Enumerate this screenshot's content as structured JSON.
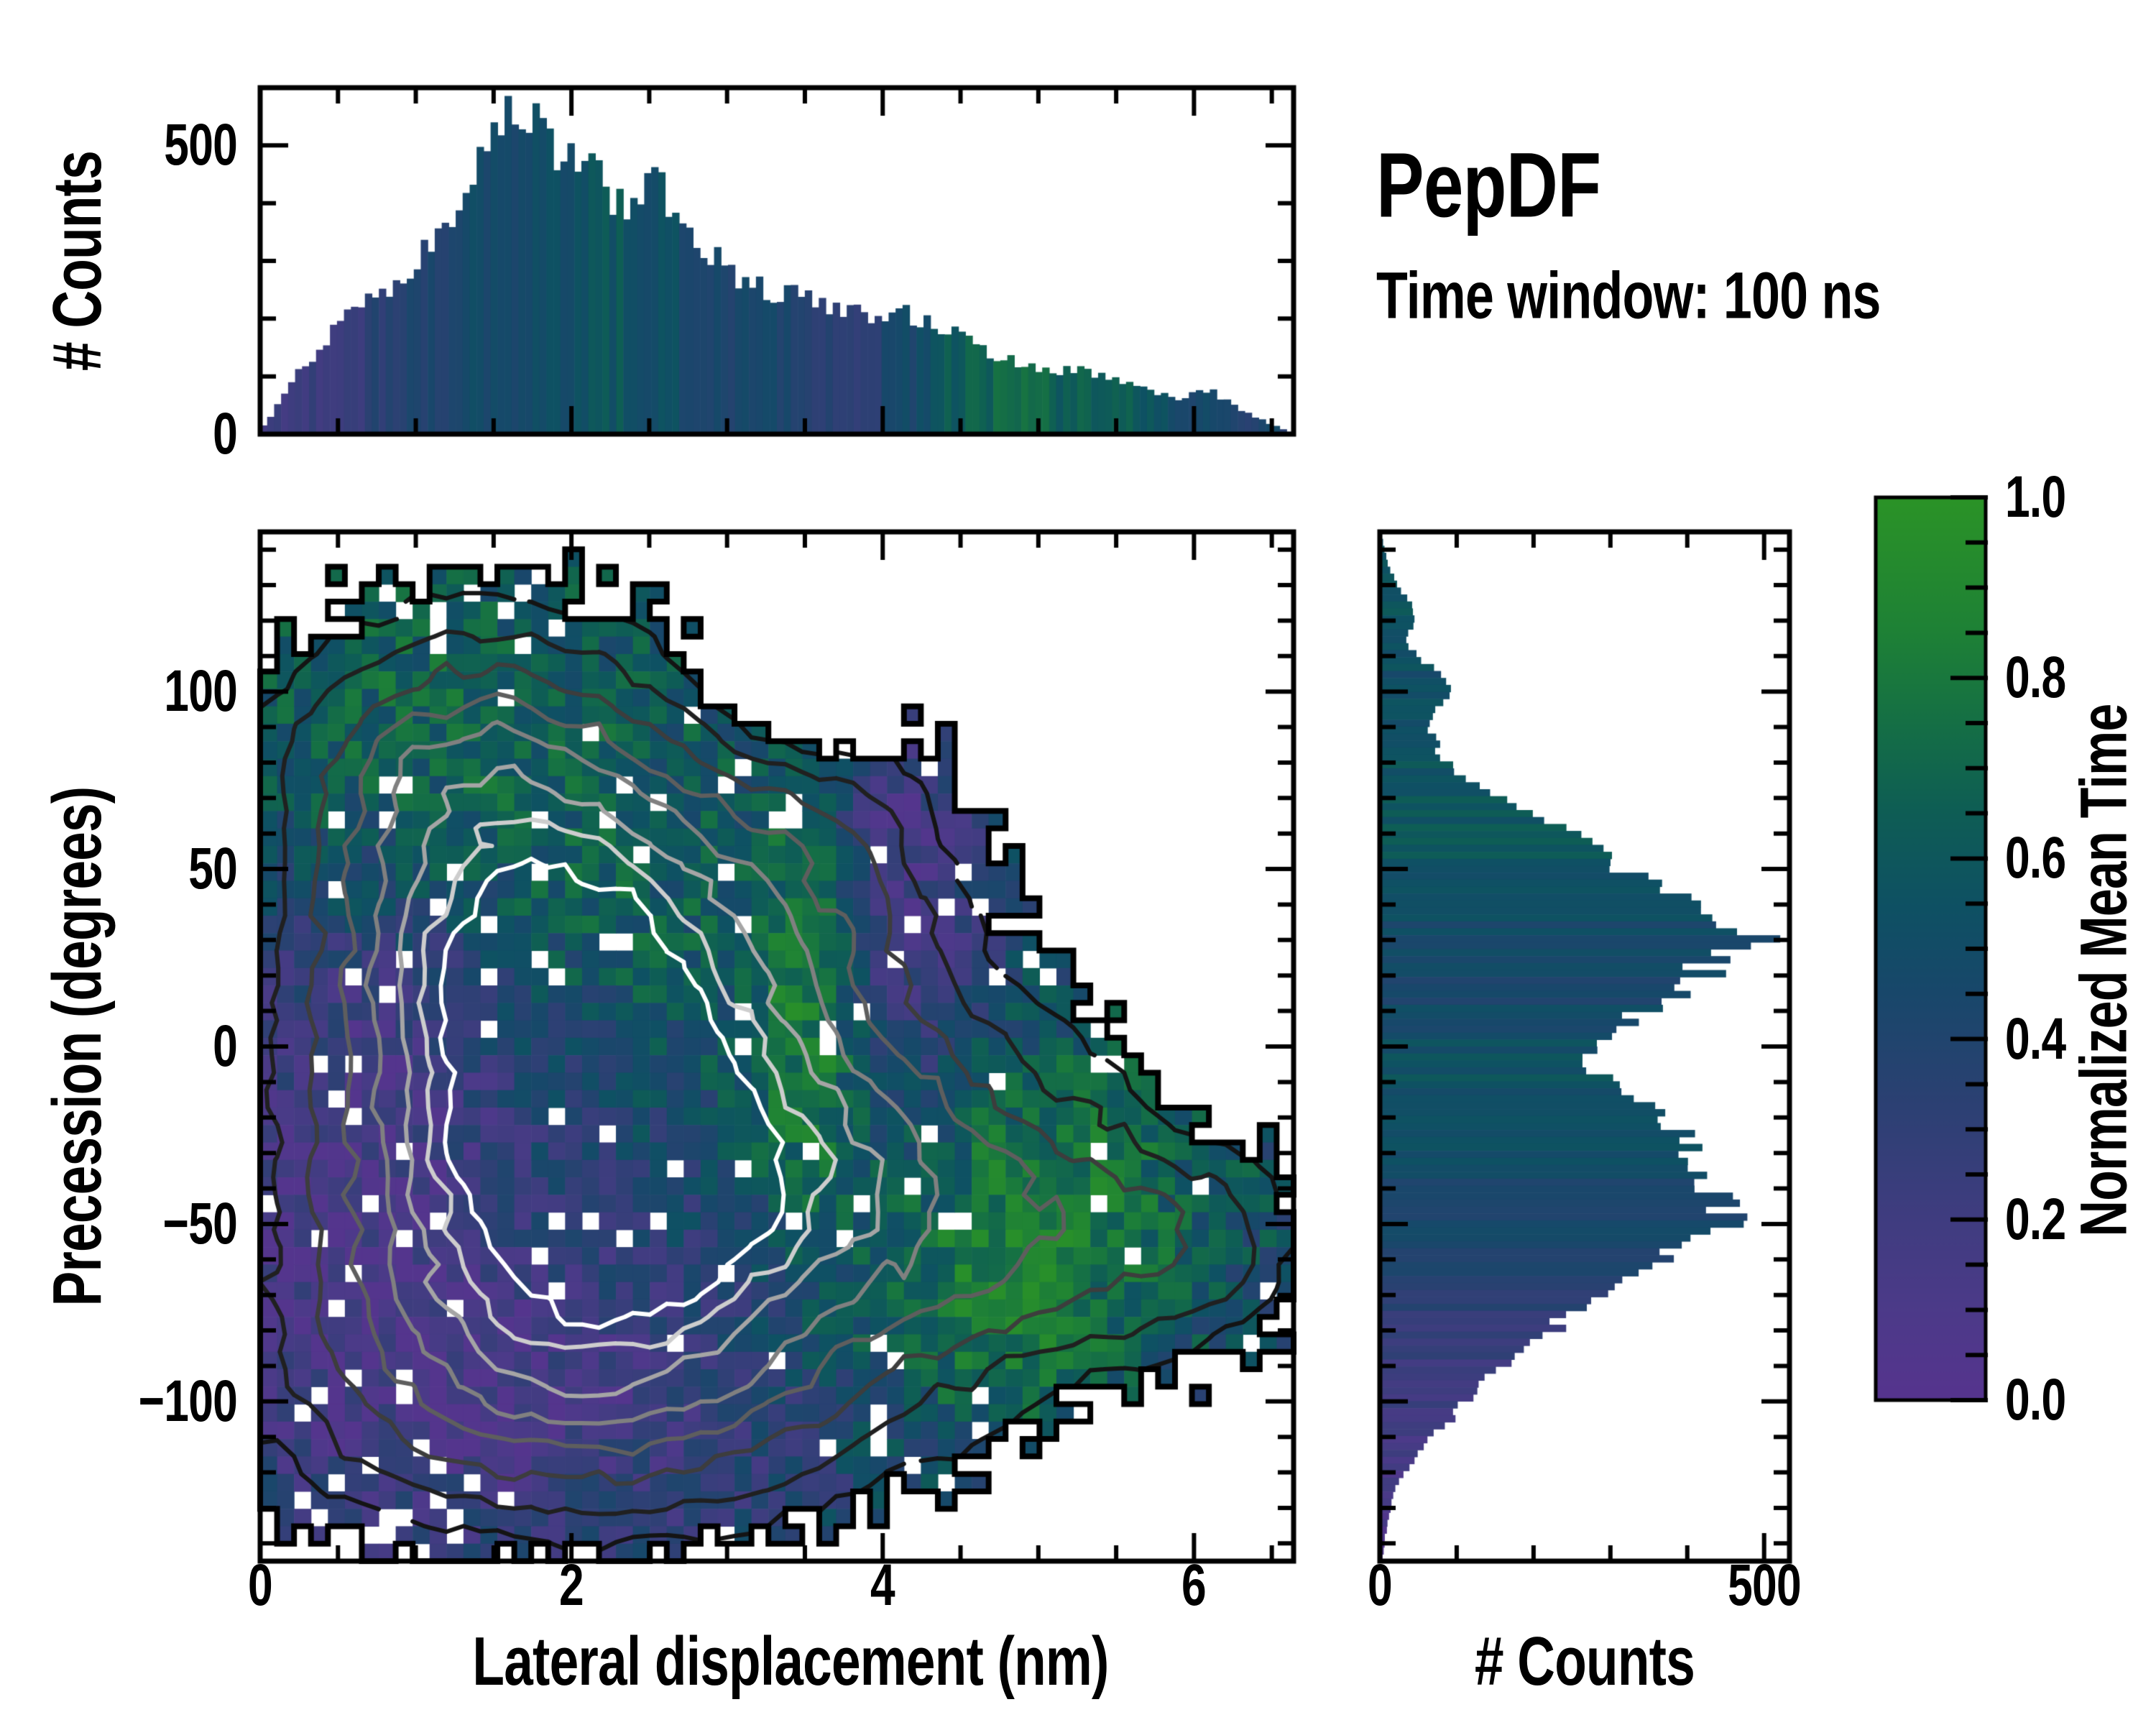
{
  "figure": {
    "title": "PepDF",
    "subtitle": "Time window: 100 ns",
    "background": "#ffffff",
    "axis_color": "#000000"
  },
  "labels": {
    "top_hist_y": "# Counts",
    "main_x": "Lateral displacement (nm)",
    "main_y": "Precession (degrees)",
    "right_hist_x": "# Counts",
    "colorbar": "Normalized Mean Time"
  },
  "colormap": {
    "stops": [
      [
        0.0,
        "#56348E"
      ],
      [
        0.1,
        "#4C3A89"
      ],
      [
        0.22,
        "#3D3D7E"
      ],
      [
        0.34,
        "#2A4172"
      ],
      [
        0.46,
        "#17486A"
      ],
      [
        0.55,
        "#0E5163"
      ],
      [
        0.65,
        "#0E5D55"
      ],
      [
        0.75,
        "#156F45"
      ],
      [
        0.85,
        "#1E8136"
      ],
      [
        1.0,
        "#2B9327"
      ]
    ]
  },
  "chart_data": [
    {
      "id": "top_histogram",
      "type": "bar",
      "orientation": "vertical",
      "ylabel": "# Counts",
      "x_range": [
        0,
        6.64
      ],
      "y_range": [
        0,
        600
      ],
      "bins": 148,
      "y_major_ticks": [
        {
          "value": 0,
          "label": "0"
        },
        {
          "value": 500,
          "label": "500"
        }
      ],
      "y_minor_step": 100,
      "x_major_ticks": [
        0,
        2,
        4,
        6
      ],
      "x_minor_step": 0.5,
      "envelope_x": [
        0,
        0.1,
        0.2,
        0.3,
        0.45,
        0.6,
        0.7,
        0.85,
        1.0,
        1.15,
        1.3,
        1.45,
        1.55,
        1.65,
        1.75,
        1.85,
        1.95,
        2.05,
        2.15,
        2.3,
        2.45,
        2.55,
        2.7,
        2.85,
        3.0,
        3.15,
        3.3,
        3.5,
        3.7,
        3.9,
        4.1,
        4.3,
        4.5,
        4.75,
        5.0,
        5.3,
        5.6,
        5.9,
        6.1,
        6.4,
        6.64
      ],
      "envelope_counts": [
        5,
        45,
        90,
        125,
        175,
        210,
        245,
        250,
        300,
        345,
        430,
        480,
        545,
        530,
        540,
        505,
        495,
        470,
        450,
        390,
        430,
        440,
        385,
        330,
        290,
        262,
        240,
        252,
        212,
        205,
        212,
        192,
        168,
        135,
        115,
        108,
        85,
        62,
        75,
        28,
        2
      ],
      "meantime_x": [
        0,
        0.5,
        1.0,
        1.5,
        2.0,
        2.3,
        2.6,
        3.0,
        3.4,
        3.8,
        4.1,
        4.4,
        4.7,
        5.0,
        5.2,
        5.5,
        5.8,
        6.0,
        6.3,
        6.64
      ],
      "meantime_v": [
        0.2,
        0.26,
        0.38,
        0.46,
        0.52,
        0.58,
        0.5,
        0.45,
        0.42,
        0.3,
        0.42,
        0.62,
        0.68,
        0.7,
        0.62,
        0.68,
        0.55,
        0.45,
        0.42,
        0.4
      ],
      "noise_amp": 0.18
    },
    {
      "id": "main_heatmap",
      "type": "heatmap",
      "xlabel": "Lateral displacement (nm)",
      "ylabel": "Precession (degrees)",
      "x_range": [
        0,
        6.64
      ],
      "y_range": [
        -145,
        145
      ],
      "x_major_ticks": [
        {
          "value": 0,
          "label": "0"
        },
        {
          "value": 2,
          "label": "2"
        },
        {
          "value": 4,
          "label": "4"
        },
        {
          "value": 6,
          "label": "6"
        }
      ],
      "x_minor_step": 0.5,
      "y_major_ticks": [
        {
          "value": 100,
          "label": "100"
        },
        {
          "value": 50,
          "label": "50"
        },
        {
          "value": 0,
          "label": "0"
        },
        {
          "value": -50,
          "label": "−50"
        },
        {
          "value": -100,
          "label": "−100"
        }
      ],
      "y_minor_step": 10,
      "grid_nx": 61,
      "grid_ny": 59,
      "density_peaks": [
        {
          "x": 2.2,
          "y": -10,
          "sx": 1.9,
          "sy": 75,
          "a": 0.55
        },
        {
          "x": 1.8,
          "y": 28,
          "sx": 1.05,
          "sy": 52,
          "a": 1.0
        },
        {
          "x": 2.6,
          "y": -48,
          "sx": 1.3,
          "sy": 38,
          "a": 0.72
        },
        {
          "x": 1.2,
          "y": -95,
          "sx": 1.2,
          "sy": 35,
          "a": 0.45
        },
        {
          "x": 4.8,
          "y": -45,
          "sx": 1.1,
          "sy": 38,
          "a": 0.45
        },
        {
          "x": 1.0,
          "y": 90,
          "sx": 0.9,
          "sy": 30,
          "a": 0.38
        },
        {
          "x": 3.7,
          "y": 60,
          "sx": 0.7,
          "sy": 45,
          "a": 0.35
        },
        {
          "x": 5.8,
          "y": -60,
          "sx": 0.8,
          "sy": 25,
          "a": 0.3
        },
        {
          "x": 3.0,
          "y": -110,
          "sx": 1.2,
          "sy": 25,
          "a": 0.3
        },
        {
          "x": 3.5,
          "y": 103,
          "sx": 0.45,
          "sy": 16,
          "a": -0.5
        },
        {
          "x": 6.3,
          "y": -55,
          "sx": 0.5,
          "sy": 18,
          "a": 0.15
        }
      ],
      "meantime_base": 0.45,
      "meantime_terms": [
        {
          "x": 1.1,
          "y": 95,
          "sx": 1.6,
          "sy": 40,
          "a": 0.22
        },
        {
          "x": 4.05,
          "y": 45,
          "sx": 0.42,
          "sy": 55,
          "a": -0.38
        },
        {
          "x": 3.55,
          "y": 15,
          "sx": 0.28,
          "sy": 45,
          "a": 0.45
        },
        {
          "x": 5.0,
          "y": -35,
          "sx": 0.9,
          "sy": 30,
          "a": 0.32
        },
        {
          "x": 4.7,
          "y": -80,
          "sx": 0.7,
          "sy": 25,
          "a": 0.3
        },
        {
          "x": 1.5,
          "y": -100,
          "sx": 1.5,
          "sy": 35,
          "a": -0.3
        },
        {
          "x": 0.5,
          "y": -40,
          "sx": 0.8,
          "sy": 40,
          "a": -0.25
        },
        {
          "x": 2.2,
          "y": 30,
          "sx": 0.8,
          "sy": 30,
          "a": 0.15
        },
        {
          "x": 0.9,
          "y": 10,
          "sx": 0.8,
          "sy": 30,
          "a": -0.18
        }
      ],
      "mask_threshold": 0.34,
      "mask_noise": 0.12,
      "hole_threshold": 0.955,
      "meantime_noise": 0.36,
      "contour_levels": [
        0.5,
        0.66,
        0.82,
        0.98,
        1.12,
        1.26,
        1.38,
        1.48
      ],
      "contour_colors": [
        "#141414",
        "#202020",
        "#3d3d3d",
        "#5e5e5e",
        "#808080",
        "#a5a5a5",
        "#cdcdcd",
        "#ffffff"
      ]
    },
    {
      "id": "right_histogram",
      "type": "bar",
      "orientation": "horizontal",
      "xlabel": "# Counts",
      "x_range": [
        0,
        533
      ],
      "y_range": [
        -145,
        145
      ],
      "bins": 148,
      "x_major_ticks": [
        {
          "value": 0,
          "label": "0"
        },
        {
          "value": 500,
          "label": "500"
        }
      ],
      "x_minor_step": 100,
      "y_minor_step": 10,
      "envelope_y": [
        -145,
        -138,
        -132,
        -126,
        -122,
        -118,
        -114,
        -110,
        -106,
        -102,
        -98,
        -94,
        -90,
        -86,
        -82,
        -78,
        -74,
        -70,
        -66,
        -62,
        -58,
        -54,
        -50,
        -46,
        -42,
        -38,
        -34,
        -30,
        -26,
        -22,
        -18,
        -14,
        -10,
        -6,
        -2,
        0,
        4,
        8,
        12,
        16,
        20,
        24,
        28,
        30,
        34,
        38,
        42,
        46,
        50,
        54,
        58,
        62,
        66,
        70,
        74,
        78,
        82,
        86,
        90,
        94,
        98,
        102,
        106,
        110,
        114,
        118,
        122,
        126,
        130,
        134,
        138,
        145
      ],
      "envelope_counts": [
        3,
        7,
        12,
        18,
        26,
        38,
        52,
        68,
        88,
        103,
        122,
        142,
        168,
        188,
        208,
        235,
        258,
        288,
        318,
        352,
        385,
        430,
        448,
        460,
        438,
        428,
        415,
        420,
        392,
        372,
        345,
        318,
        295,
        272,
        258,
        268,
        300,
        330,
        375,
        402,
        418,
        432,
        468,
        488,
        452,
        430,
        398,
        352,
        318,
        295,
        268,
        242,
        205,
        162,
        120,
        95,
        78,
        72,
        64,
        70,
        85,
        92,
        74,
        48,
        34,
        40,
        46,
        36,
        22,
        14,
        8,
        2
      ],
      "meantime_y": [
        -145,
        -135,
        -125,
        -115,
        -105,
        -95,
        -85,
        -75,
        -65,
        -55,
        -45,
        -35,
        -25,
        -15,
        -5,
        5,
        15,
        25,
        35,
        45,
        55,
        70,
        85,
        100,
        120,
        145
      ],
      "meantime_v": [
        0.08,
        0.1,
        0.12,
        0.15,
        0.18,
        0.22,
        0.25,
        0.3,
        0.4,
        0.45,
        0.45,
        0.47,
        0.52,
        0.55,
        0.55,
        0.5,
        0.45,
        0.45,
        0.48,
        0.55,
        0.6,
        0.58,
        0.55,
        0.5,
        0.6,
        0.55
      ],
      "noise_amp": 0.16
    },
    {
      "id": "colorbar",
      "type": "colorbar",
      "label": "Normalized Mean Time",
      "range": [
        0,
        1
      ],
      "major_ticks": [
        {
          "value": 0.0,
          "label": "0.0"
        },
        {
          "value": 0.2,
          "label": "0.2"
        },
        {
          "value": 0.4,
          "label": "0.4"
        },
        {
          "value": 0.6,
          "label": "0.6"
        },
        {
          "value": 0.8,
          "label": "0.8"
        },
        {
          "value": 1.0,
          "label": "1.0"
        }
      ],
      "minor_step": 0.05
    }
  ]
}
